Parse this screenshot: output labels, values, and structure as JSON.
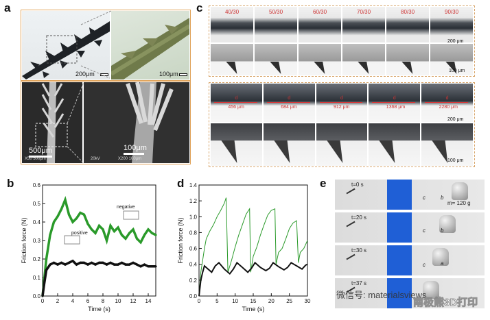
{
  "panels": {
    "a": "a",
    "b": "b",
    "c": "c",
    "d": "d",
    "e": "e"
  },
  "panel_a": {
    "scale_top_left": "200μm",
    "scale_top_right": "100μm",
    "scale_sem_left": "500μm",
    "scale_sem_right": "100μm",
    "sem_info_left": "X50 500μm",
    "sem_info_right_a": "20kV",
    "sem_info_right_b": "X200 100μm"
  },
  "panel_c": {
    "ratios": [
      "40/30",
      "50/30",
      "60/30",
      "70/30",
      "80/30",
      "90/30"
    ],
    "scale_row1": "200 μm",
    "scale_row2": "100 μm",
    "distances": [
      "456 μm",
      "684 μm",
      "912 μm",
      "1368 μm",
      "2280 μm"
    ],
    "d_label": "d",
    "scale_row3": "200 μm",
    "scale_row4": "100 μm"
  },
  "chart_data": [
    {
      "type": "line",
      "panel": "b",
      "xlabel": "Time (s)",
      "ylabel": "Friction force (N)",
      "xlim": [
        0,
        15
      ],
      "ylim": [
        0,
        0.6
      ],
      "xticks": [
        "0",
        "2",
        "4",
        "6",
        "8",
        "10",
        "12",
        "14"
      ],
      "yticks": [
        "0.0",
        "0.1",
        "0.2",
        "0.3",
        "0.4",
        "0.5",
        "0.6"
      ],
      "series": [
        {
          "name": "negative",
          "color": "#2a9a2a",
          "x": [
            0,
            0.2,
            0.5,
            1,
            1.5,
            2,
            2.5,
            3,
            3.5,
            4,
            4.5,
            5,
            5.5,
            6,
            6.5,
            7,
            7.5,
            8,
            8.5,
            9,
            9.5,
            10,
            10.5,
            11,
            11.5,
            12,
            12.5,
            13,
            13.5,
            14,
            14.5,
            15
          ],
          "values": [
            0,
            0.08,
            0.2,
            0.33,
            0.4,
            0.43,
            0.47,
            0.52,
            0.44,
            0.4,
            0.42,
            0.45,
            0.44,
            0.39,
            0.36,
            0.34,
            0.38,
            0.36,
            0.3,
            0.38,
            0.35,
            0.37,
            0.33,
            0.31,
            0.34,
            0.36,
            0.31,
            0.29,
            0.33,
            0.36,
            0.34,
            0.33
          ]
        },
        {
          "name": "positive",
          "color": "#111111",
          "x": [
            0,
            0.2,
            0.5,
            1,
            1.5,
            2,
            2.5,
            3,
            3.5,
            4,
            4.5,
            5,
            5.5,
            6,
            6.5,
            7,
            7.5,
            8,
            8.5,
            9,
            9.5,
            10,
            10.5,
            11,
            11.5,
            12,
            12.5,
            13,
            13.5,
            14,
            14.5,
            15
          ],
          "values": [
            0,
            0.06,
            0.14,
            0.17,
            0.18,
            0.17,
            0.18,
            0.17,
            0.18,
            0.19,
            0.17,
            0.18,
            0.18,
            0.17,
            0.18,
            0.17,
            0.18,
            0.18,
            0.17,
            0.18,
            0.17,
            0.17,
            0.18,
            0.17,
            0.17,
            0.18,
            0.17,
            0.16,
            0.17,
            0.16,
            0.16,
            0.16
          ]
        }
      ]
    },
    {
      "type": "line",
      "panel": "d",
      "xlabel": "Time (s)",
      "ylabel": "Friction force (N)",
      "xlim": [
        0,
        30
      ],
      "ylim": [
        0,
        1.4
      ],
      "xticks": [
        "0",
        "5",
        "10",
        "15",
        "20",
        "25",
        "30"
      ],
      "yticks": [
        "0.0",
        "0.2",
        "0.4",
        "0.6",
        "0.8",
        "1.0",
        "1.2",
        "1.4"
      ],
      "series": [
        {
          "color": "#2a9a2a",
          "x": [
            0,
            0.5,
            1,
            1.5,
            2,
            3,
            4,
            5,
            6,
            7,
            7.5,
            8,
            9,
            10,
            11,
            12,
            13,
            14,
            14.3,
            15,
            16,
            17,
            18,
            19,
            20,
            21,
            21.3,
            22,
            23,
            24,
            25,
            26,
            27,
            27.5,
            28,
            29,
            30
          ],
          "values": [
            0,
            0.3,
            0.45,
            0.6,
            0.72,
            0.82,
            0.9,
            1.0,
            1.08,
            1.17,
            1.24,
            0.3,
            0.45,
            0.62,
            0.77,
            0.9,
            1.03,
            1.1,
            0.3,
            0.5,
            0.62,
            0.77,
            0.9,
            1.02,
            1.08,
            1.1,
            0.4,
            0.55,
            0.6,
            0.72,
            0.85,
            0.92,
            0.95,
            0.42,
            0.55,
            0.6,
            0.7
          ]
        },
        {
          "color": "#111111",
          "x": [
            0,
            0.5,
            1,
            1.5,
            2.5,
            3.5,
            4.5,
            5.5,
            7,
            8.5,
            9.5,
            10.5,
            12,
            13.5,
            14.5,
            15.5,
            17,
            18.5,
            19.5,
            20.5,
            22,
            23.5,
            24.5,
            25.5,
            27,
            28.5,
            29.5,
            30
          ],
          "values": [
            0,
            0.2,
            0.3,
            0.38,
            0.34,
            0.3,
            0.38,
            0.42,
            0.34,
            0.28,
            0.34,
            0.42,
            0.36,
            0.3,
            0.35,
            0.42,
            0.36,
            0.32,
            0.35,
            0.42,
            0.37,
            0.33,
            0.36,
            0.42,
            0.38,
            0.34,
            0.39,
            0.4
          ]
        }
      ]
    }
  ],
  "panel_b": {
    "legend_negative": "negative",
    "legend_positive": "positive"
  },
  "panel_e": {
    "times": [
      "t=0 s",
      "t=20 s",
      "t=30 s",
      "t=37 s"
    ],
    "mass": "m= 120 g",
    "letter_c": "c",
    "letter_b": "b",
    "letter_a": "a",
    "watermark": "微信号: materialsviews",
    "watermark2": "南极熊3D打印"
  }
}
